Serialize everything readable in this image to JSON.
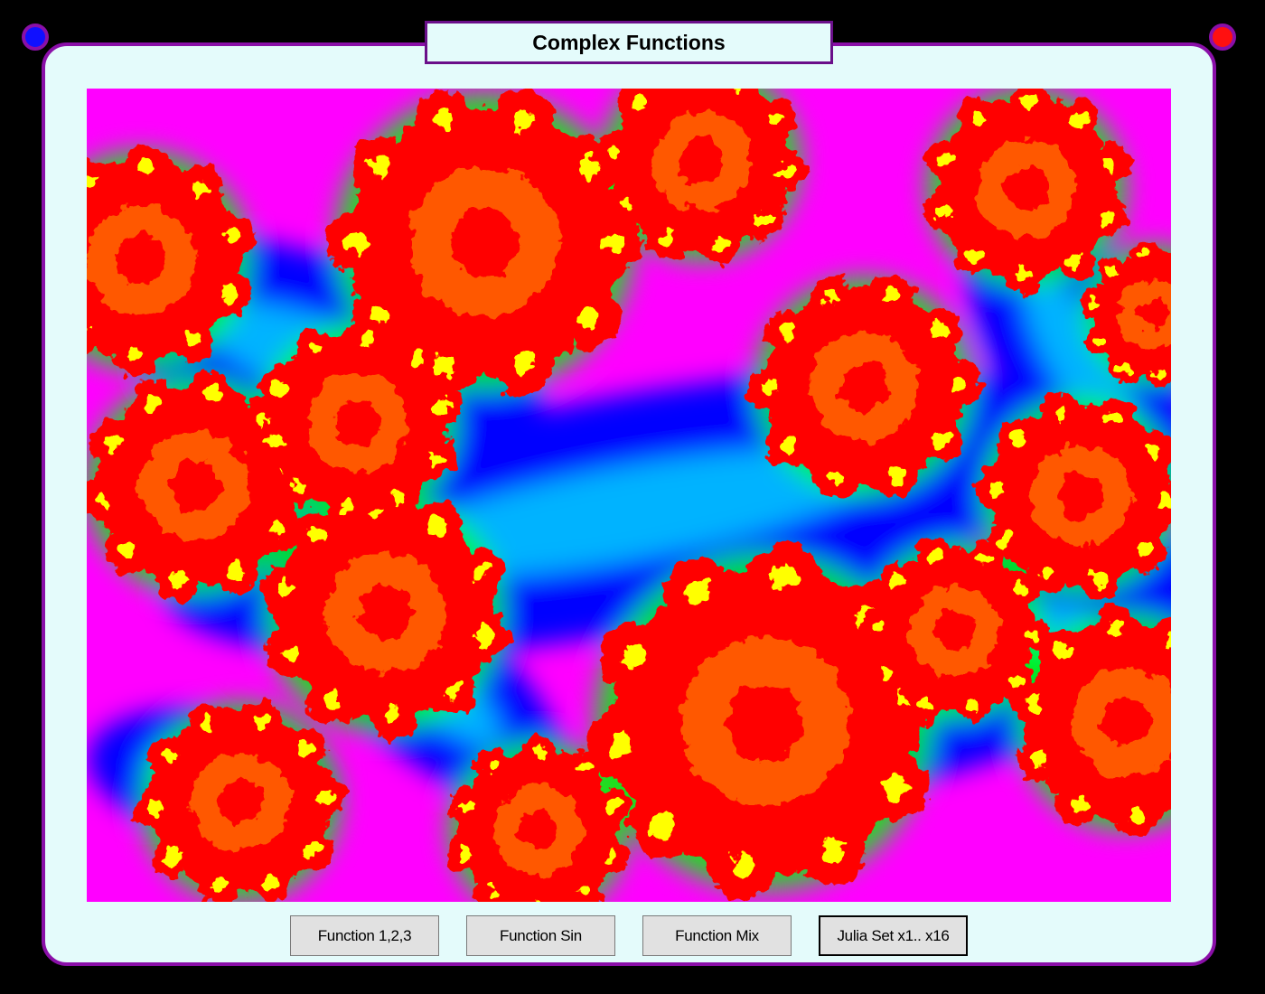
{
  "window": {
    "title": "Complex Functions",
    "frame_color": "#8a0fa8",
    "background_color": "#e4fbfb"
  },
  "corner_buttons": {
    "left": {
      "icon": "blue-circle-icon",
      "color": "#1010ff"
    },
    "right": {
      "icon": "red-circle-icon",
      "color": "#ff1010"
    }
  },
  "canvas": {
    "content": "julia-set-fractal",
    "palette": [
      "#ff00ff",
      "#8000ff",
      "#0000ff",
      "#00ffff",
      "#00ff00",
      "#ffff00",
      "#ff0000"
    ]
  },
  "buttons": [
    {
      "label": "Function 1,2,3",
      "active": false
    },
    {
      "label": "Function Sin",
      "active": false
    },
    {
      "label": "Function Mix",
      "active": false
    },
    {
      "label": "Julia Set x1.. x16",
      "active": true
    }
  ]
}
